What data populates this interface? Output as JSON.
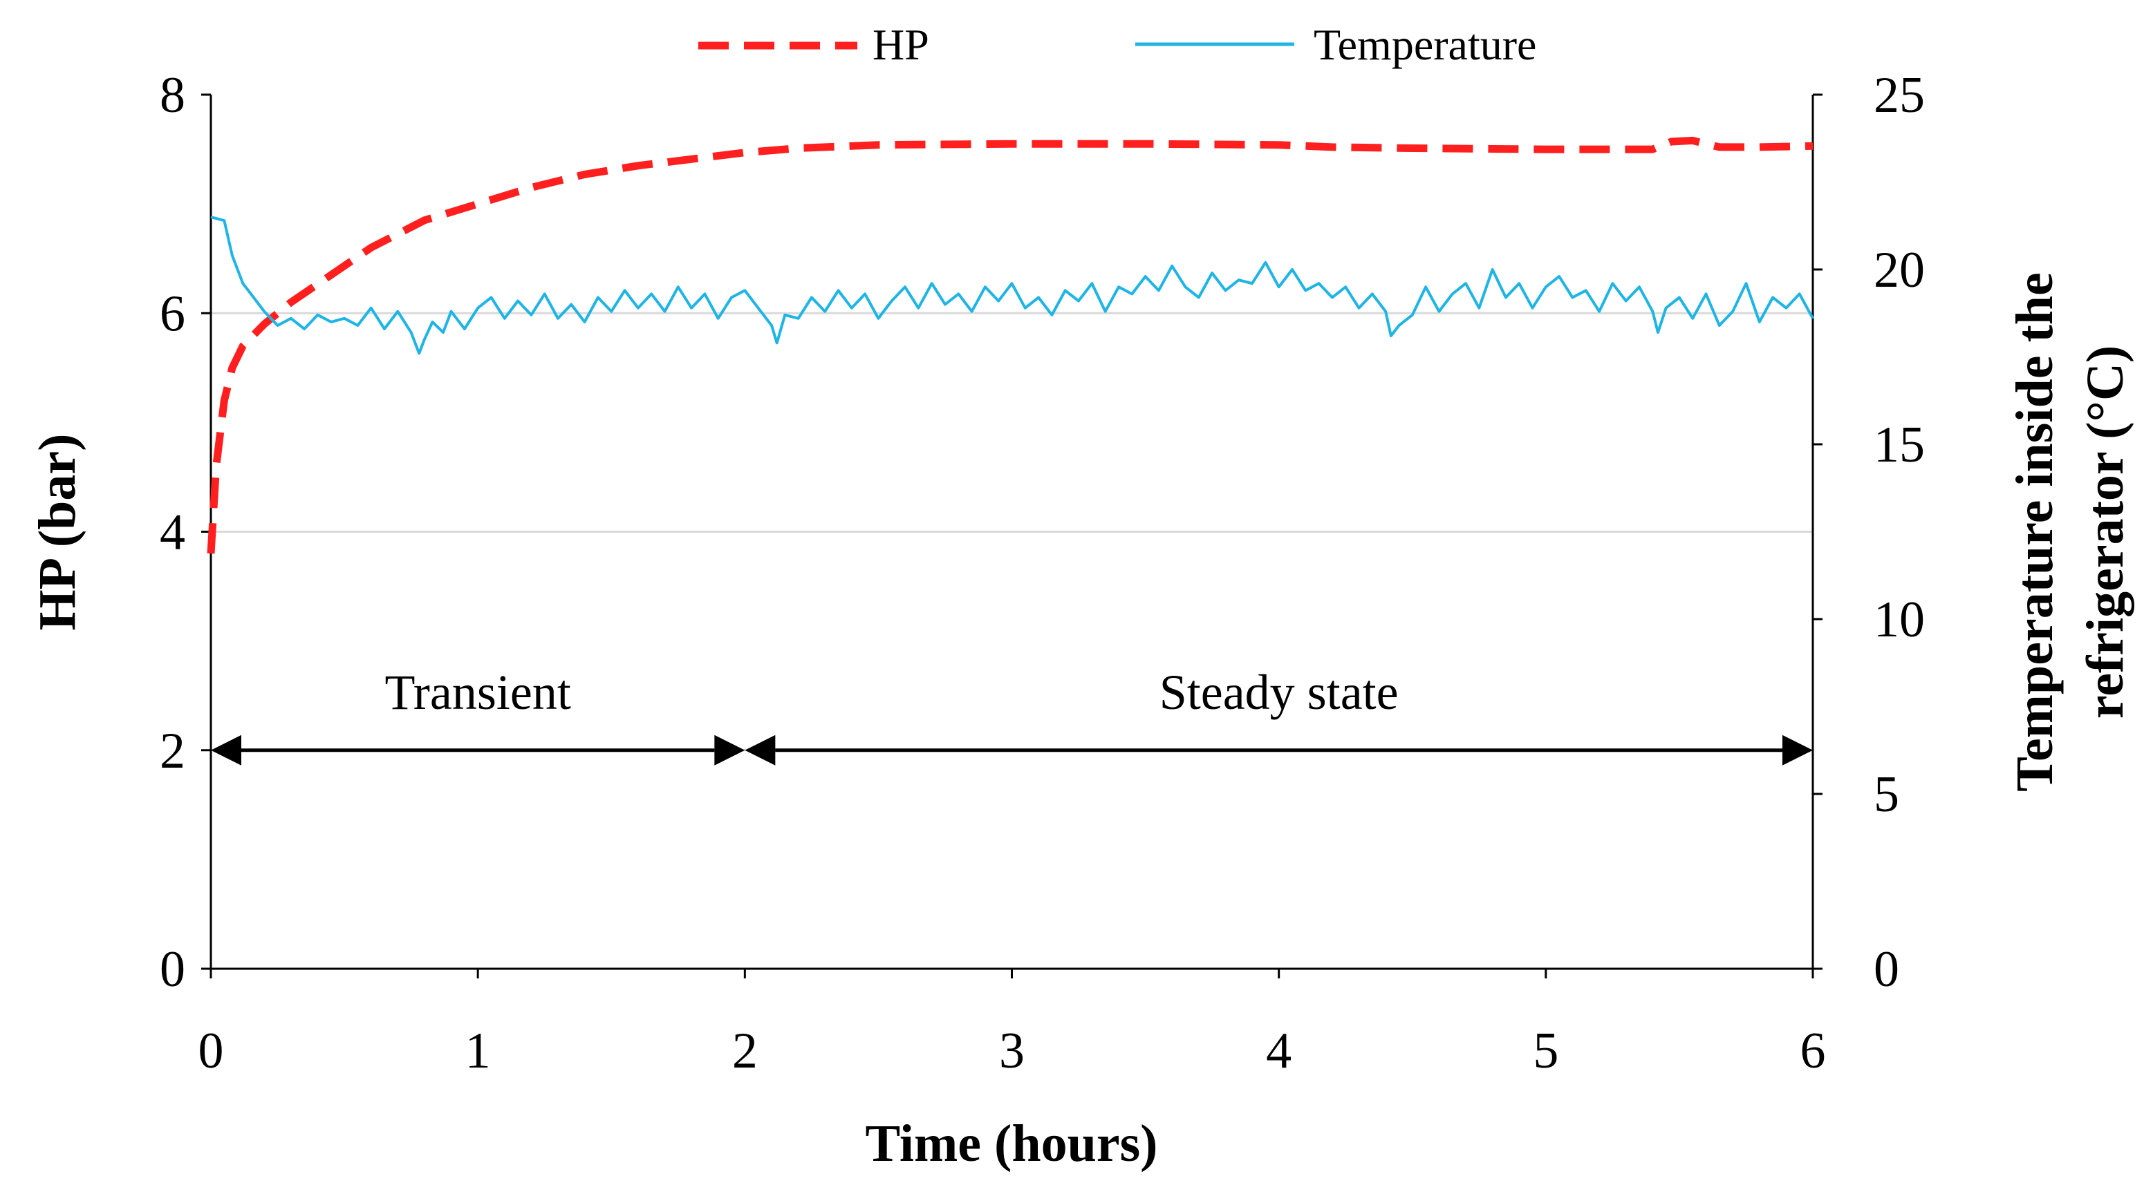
{
  "chart_data": {
    "type": "line",
    "title": "",
    "xlabel": "Time (hours)",
    "ylabel_left": "HP (bar)",
    "ylabel_right_lines": [
      "Temperature inside the",
      "refrigerator (°C)"
    ],
    "xlim": [
      0,
      6
    ],
    "ylim_left": [
      0,
      8
    ],
    "ylim_right": [
      0,
      25
    ],
    "x_ticks": [
      "0",
      "1",
      "2",
      "3",
      "4",
      "5",
      "6"
    ],
    "y_left_ticks": [
      "0",
      "2",
      "4",
      "6",
      "8"
    ],
    "y_right_ticks": [
      "0",
      "5",
      "10",
      "15",
      "20",
      "25"
    ],
    "legend_position": "top-center",
    "gridlines": "horizontal at left-axis ticks",
    "series": [
      {
        "name": "HP",
        "axis": "left",
        "style": "dashed",
        "color": "#ff1f1f",
        "x": [
          0,
          0.02,
          0.05,
          0.08,
          0.12,
          0.2,
          0.3,
          0.45,
          0.6,
          0.8,
          1.0,
          1.2,
          1.4,
          1.6,
          1.8,
          2.0,
          2.2,
          2.5,
          3.0,
          3.5,
          4.0,
          4.2,
          4.5,
          5.0,
          5.3,
          5.4,
          5.47,
          5.55,
          5.65,
          5.8,
          6.0
        ],
        "values": [
          3.8,
          4.6,
          5.2,
          5.5,
          5.7,
          5.9,
          6.1,
          6.35,
          6.6,
          6.85,
          7.0,
          7.15,
          7.27,
          7.35,
          7.41,
          7.47,
          7.51,
          7.54,
          7.55,
          7.55,
          7.54,
          7.52,
          7.51,
          7.5,
          7.5,
          7.5,
          7.57,
          7.58,
          7.52,
          7.52,
          7.53
        ]
      },
      {
        "name": "Temperature",
        "axis": "right",
        "style": "solid",
        "color": "#1eb4e6",
        "x": [
          0,
          0.05,
          0.08,
          0.12,
          0.16,
          0.2,
          0.25,
          0.3,
          0.35,
          0.4,
          0.45,
          0.5,
          0.55,
          0.6,
          0.65,
          0.7,
          0.75,
          0.78,
          0.8,
          0.83,
          0.87,
          0.9,
          0.95,
          1.0,
          1.05,
          1.1,
          1.15,
          1.2,
          1.25,
          1.3,
          1.35,
          1.4,
          1.45,
          1.5,
          1.55,
          1.6,
          1.65,
          1.7,
          1.75,
          1.8,
          1.85,
          1.9,
          1.95,
          2.0,
          2.05,
          2.1,
          2.12,
          2.15,
          2.2,
          2.25,
          2.3,
          2.35,
          2.4,
          2.45,
          2.5,
          2.55,
          2.6,
          2.65,
          2.7,
          2.75,
          2.8,
          2.85,
          2.9,
          2.95,
          3.0,
          3.05,
          3.1,
          3.15,
          3.2,
          3.25,
          3.3,
          3.35,
          3.4,
          3.45,
          3.5,
          3.55,
          3.6,
          3.65,
          3.7,
          3.75,
          3.8,
          3.85,
          3.9,
          3.95,
          4.0,
          4.05,
          4.1,
          4.15,
          4.2,
          4.25,
          4.3,
          4.35,
          4.4,
          4.42,
          4.45,
          4.5,
          4.55,
          4.6,
          4.65,
          4.7,
          4.75,
          4.8,
          4.85,
          4.9,
          4.95,
          5.0,
          5.05,
          5.1,
          5.15,
          5.2,
          5.25,
          5.3,
          5.35,
          5.4,
          5.42,
          5.45,
          5.5,
          5.55,
          5.6,
          5.65,
          5.7,
          5.75,
          5.8,
          5.85,
          5.9,
          5.95,
          6.0
        ],
        "values": [
          21.5,
          21.4,
          20.4,
          19.6,
          19.2,
          18.8,
          18.4,
          18.6,
          18.3,
          18.7,
          18.5,
          18.6,
          18.4,
          18.9,
          18.3,
          18.8,
          18.2,
          17.6,
          18.0,
          18.5,
          18.2,
          18.8,
          18.3,
          18.9,
          19.2,
          18.6,
          19.1,
          18.7,
          19.3,
          18.6,
          19.0,
          18.5,
          19.2,
          18.8,
          19.4,
          18.9,
          19.3,
          18.8,
          19.5,
          18.9,
          19.3,
          18.6,
          19.2,
          19.4,
          18.9,
          18.4,
          17.9,
          18.7,
          18.6,
          19.2,
          18.8,
          19.4,
          18.9,
          19.3,
          18.6,
          19.1,
          19.5,
          18.9,
          19.6,
          19.0,
          19.3,
          18.8,
          19.5,
          19.1,
          19.6,
          18.9,
          19.2,
          18.7,
          19.4,
          19.1,
          19.6,
          18.8,
          19.5,
          19.3,
          19.8,
          19.4,
          20.1,
          19.5,
          19.2,
          19.9,
          19.4,
          19.7,
          19.6,
          20.2,
          19.5,
          20.0,
          19.4,
          19.6,
          19.2,
          19.5,
          18.9,
          19.3,
          18.8,
          18.1,
          18.4,
          18.7,
          19.5,
          18.8,
          19.3,
          19.6,
          18.9,
          20.0,
          19.2,
          19.6,
          18.9,
          19.5,
          19.8,
          19.2,
          19.4,
          18.8,
          19.6,
          19.1,
          19.5,
          18.8,
          18.2,
          18.9,
          19.2,
          18.6,
          19.3,
          18.4,
          18.8,
          19.6,
          18.5,
          19.2,
          18.9,
          19.3,
          18.6
        ]
      }
    ],
    "annotations": [
      {
        "text": "Transient",
        "x_start": 0,
        "x_end": 2,
        "y_left": 2
      },
      {
        "text": "Steady state",
        "x_start": 2,
        "x_end": 6,
        "y_left": 2
      }
    ]
  }
}
